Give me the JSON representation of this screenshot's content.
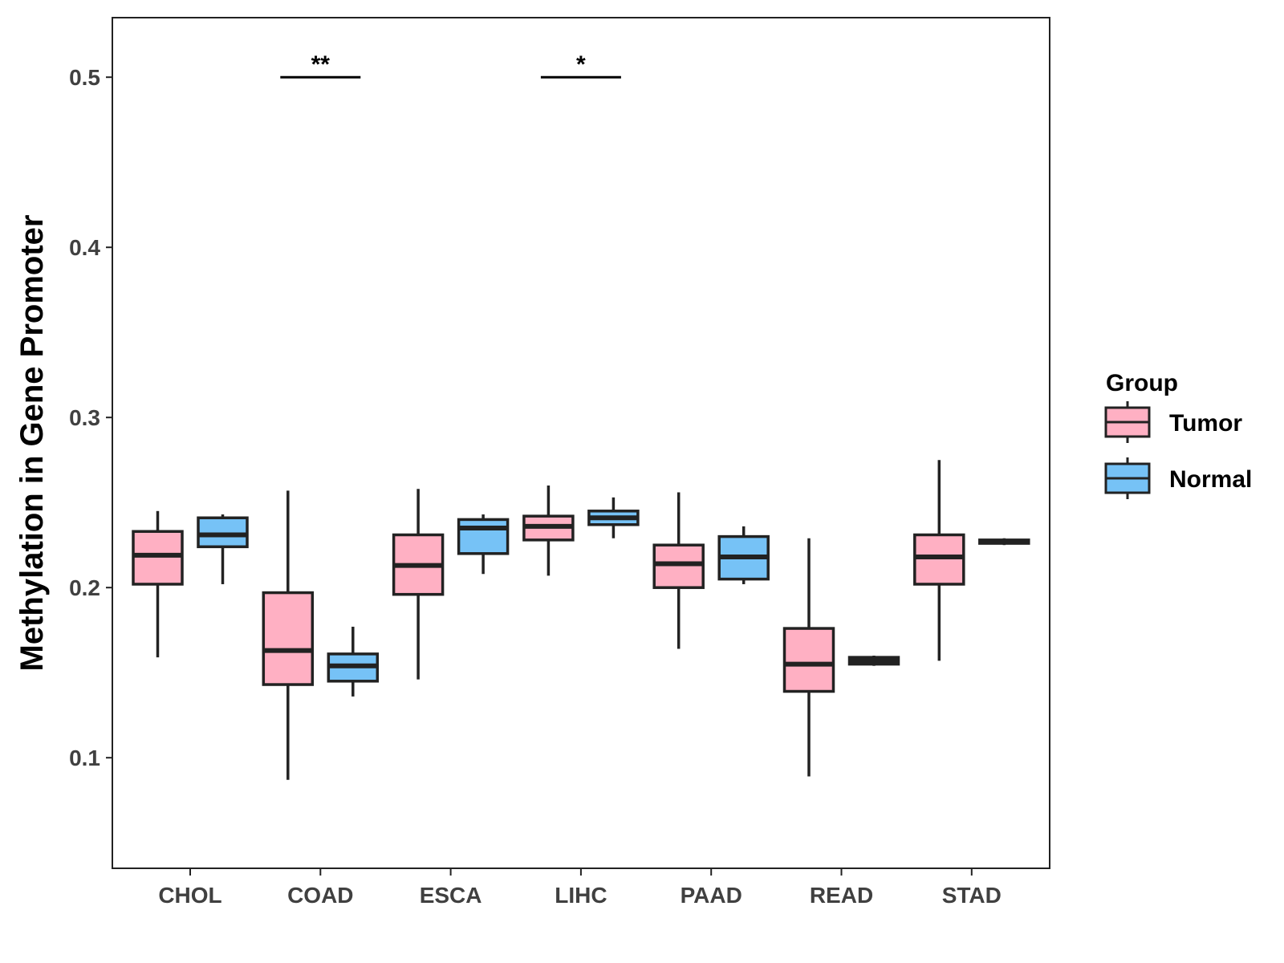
{
  "chart_data": {
    "type": "boxplot",
    "ylabel": "Methylation in Gene Promoter",
    "xlabel": "",
    "ylim": [
      0.035,
      0.535
    ],
    "yticks": [
      0.1,
      0.2,
      0.3,
      0.4,
      0.5
    ],
    "ytick_labels": [
      "0.1",
      "0.2",
      "0.3",
      "0.4",
      "0.5"
    ],
    "grid": false,
    "categories": [
      "CHOL",
      "COAD",
      "ESCA",
      "LIHC",
      "PAAD",
      "READ",
      "STAD"
    ],
    "legend": {
      "title": "Group",
      "position": "right",
      "entries": [
        "Tumor",
        "Normal"
      ]
    },
    "series": [
      {
        "name": "Tumor",
        "color": "#ffb0c3",
        "boxes": [
          {
            "min": 0.159,
            "q1": 0.202,
            "median": 0.219,
            "q3": 0.233,
            "max": 0.245
          },
          {
            "min": 0.087,
            "q1": 0.143,
            "median": 0.163,
            "q3": 0.197,
            "max": 0.257
          },
          {
            "min": 0.146,
            "q1": 0.196,
            "median": 0.213,
            "q3": 0.231,
            "max": 0.258
          },
          {
            "min": 0.207,
            "q1": 0.228,
            "median": 0.236,
            "q3": 0.242,
            "max": 0.26
          },
          {
            "min": 0.164,
            "q1": 0.2,
            "median": 0.214,
            "q3": 0.225,
            "max": 0.256
          },
          {
            "min": 0.089,
            "q1": 0.139,
            "median": 0.155,
            "q3": 0.176,
            "max": 0.229
          },
          {
            "min": 0.157,
            "q1": 0.202,
            "median": 0.218,
            "q3": 0.231,
            "max": 0.275
          }
        ]
      },
      {
        "name": "Normal",
        "color": "#76c2f6",
        "boxes": [
          {
            "min": 0.202,
            "q1": 0.224,
            "median": 0.231,
            "q3": 0.241,
            "max": 0.243
          },
          {
            "min": 0.136,
            "q1": 0.145,
            "median": 0.154,
            "q3": 0.161,
            "max": 0.177
          },
          {
            "min": 0.208,
            "q1": 0.22,
            "median": 0.235,
            "q3": 0.24,
            "max": 0.243
          },
          {
            "min": 0.229,
            "q1": 0.237,
            "median": 0.241,
            "q3": 0.245,
            "max": 0.253
          },
          {
            "min": 0.202,
            "q1": 0.205,
            "median": 0.218,
            "q3": 0.23,
            "max": 0.236
          },
          {
            "min": 0.154,
            "q1": 0.155,
            "median": 0.157,
            "q3": 0.159,
            "max": 0.16
          },
          {
            "min": 0.225,
            "q1": 0.226,
            "median": 0.227,
            "q3": 0.228,
            "max": 0.229
          }
        ]
      }
    ],
    "annotations": [
      {
        "category": "COAD",
        "label": "**",
        "y": 0.5
      },
      {
        "category": "LIHC",
        "label": "*",
        "y": 0.5
      }
    ]
  }
}
